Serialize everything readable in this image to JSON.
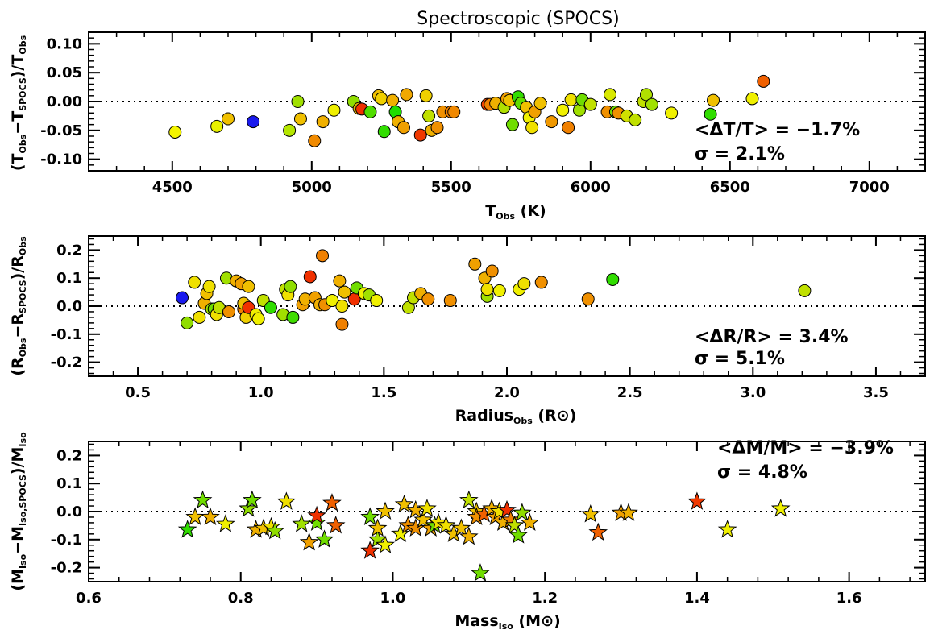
{
  "chart_data": [
    {
      "type": "scatter",
      "title": "Spectroscopic (SPOCS)",
      "xlabel": "T_Obs (K)",
      "ylabel": "(T_Obs−T_SPOCS)/T_Obs",
      "xlim": [
        4200,
        7200
      ],
      "ylim": [
        -0.12,
        0.12
      ],
      "xticks": [
        4500,
        5000,
        5500,
        6000,
        6500,
        7000
      ],
      "yticks": [
        0.1,
        0.05,
        0.0,
        -0.05,
        -0.1
      ],
      "ytick_labels": [
        "0.10",
        "0.05",
        "0.00",
        "-0.05",
        "-0.10"
      ],
      "marker": "circle",
      "annotations": [
        "<ΔT/T> = −1.7%",
        "σ = 2.1%"
      ],
      "points": [
        {
          "x": 4510,
          "y": -0.053,
          "color": "#f5f500"
        },
        {
          "x": 4660,
          "y": -0.043,
          "color": "#e8f000"
        },
        {
          "x": 4700,
          "y": -0.03,
          "color": "#f0c000"
        },
        {
          "x": 4790,
          "y": -0.035,
          "color": "#1a1aee"
        },
        {
          "x": 4920,
          "y": -0.05,
          "color": "#b5e600"
        },
        {
          "x": 4950,
          "y": 0.0,
          "color": "#a0e000"
        },
        {
          "x": 4960,
          "y": -0.03,
          "color": "#f0c000"
        },
        {
          "x": 5010,
          "y": -0.068,
          "color": "#f08a00"
        },
        {
          "x": 5040,
          "y": -0.035,
          "color": "#f0b000"
        },
        {
          "x": 5080,
          "y": -0.015,
          "color": "#f0f000"
        },
        {
          "x": 5150,
          "y": 0.0,
          "color": "#90dd00"
        },
        {
          "x": 5170,
          "y": -0.012,
          "color": "#e8b000"
        },
        {
          "x": 5180,
          "y": -0.013,
          "color": "#f03000"
        },
        {
          "x": 5210,
          "y": -0.018,
          "color": "#50dd00"
        },
        {
          "x": 5240,
          "y": 0.01,
          "color": "#f0c000"
        },
        {
          "x": 5250,
          "y": 0.005,
          "color": "#f0d000"
        },
        {
          "x": 5260,
          "y": -0.052,
          "color": "#30dd00"
        },
        {
          "x": 5290,
          "y": 0.002,
          "color": "#f0b000"
        },
        {
          "x": 5300,
          "y": -0.018,
          "color": "#20dd00"
        },
        {
          "x": 5310,
          "y": -0.035,
          "color": "#f0b000"
        },
        {
          "x": 5330,
          "y": -0.045,
          "color": "#f0a000"
        },
        {
          "x": 5340,
          "y": 0.012,
          "color": "#f0a800"
        },
        {
          "x": 5390,
          "y": -0.058,
          "color": "#f03800"
        },
        {
          "x": 5410,
          "y": 0.01,
          "color": "#f0d000"
        },
        {
          "x": 5420,
          "y": -0.025,
          "color": "#c0e000"
        },
        {
          "x": 5430,
          "y": -0.05,
          "color": "#f0b000"
        },
        {
          "x": 5450,
          "y": -0.045,
          "color": "#f09000"
        },
        {
          "x": 5470,
          "y": -0.018,
          "color": "#f09000"
        },
        {
          "x": 5500,
          "y": -0.018,
          "color": "#f08000"
        },
        {
          "x": 5510,
          "y": -0.018,
          "color": "#f08800"
        },
        {
          "x": 5630,
          "y": -0.005,
          "color": "#f04000"
        },
        {
          "x": 5640,
          "y": -0.005,
          "color": "#f08000"
        },
        {
          "x": 5660,
          "y": -0.003,
          "color": "#f0b000"
        },
        {
          "x": 5690,
          "y": -0.01,
          "color": "#b0e000"
        },
        {
          "x": 5700,
          "y": 0.005,
          "color": "#f0a000"
        },
        {
          "x": 5710,
          "y": 0.002,
          "color": "#f0c000"
        },
        {
          "x": 5720,
          "y": -0.04,
          "color": "#70dd00"
        },
        {
          "x": 5740,
          "y": 0.008,
          "color": "#30dd00"
        },
        {
          "x": 5750,
          "y": -0.003,
          "color": "#60dd00"
        },
        {
          "x": 5770,
          "y": -0.01,
          "color": "#f0c000"
        },
        {
          "x": 5780,
          "y": -0.028,
          "color": "#f0f000"
        },
        {
          "x": 5790,
          "y": -0.045,
          "color": "#f0e000"
        },
        {
          "x": 5800,
          "y": -0.018,
          "color": "#f0a000"
        },
        {
          "x": 5820,
          "y": -0.003,
          "color": "#f0c000"
        },
        {
          "x": 5860,
          "y": -0.035,
          "color": "#f09800"
        },
        {
          "x": 5900,
          "y": -0.015,
          "color": "#f0f000"
        },
        {
          "x": 5920,
          "y": -0.045,
          "color": "#f08000"
        },
        {
          "x": 5930,
          "y": 0.003,
          "color": "#f0e000"
        },
        {
          "x": 5960,
          "y": -0.015,
          "color": "#a0e000"
        },
        {
          "x": 5970,
          "y": 0.003,
          "color": "#70dd00"
        },
        {
          "x": 6000,
          "y": -0.005,
          "color": "#c0e000"
        },
        {
          "x": 6060,
          "y": -0.018,
          "color": "#f09000"
        },
        {
          "x": 6070,
          "y": 0.012,
          "color": "#d8e800"
        },
        {
          "x": 6090,
          "y": -0.018,
          "color": "#70dd00"
        },
        {
          "x": 6100,
          "y": -0.02,
          "color": "#f09000"
        },
        {
          "x": 6130,
          "y": -0.025,
          "color": "#d0e000"
        },
        {
          "x": 6160,
          "y": -0.032,
          "color": "#c0e000"
        },
        {
          "x": 6190,
          "y": 0.0,
          "color": "#c0e000"
        },
        {
          "x": 6200,
          "y": 0.012,
          "color": "#b0e000"
        },
        {
          "x": 6220,
          "y": -0.005,
          "color": "#a0e000"
        },
        {
          "x": 6290,
          "y": -0.02,
          "color": "#f0f000"
        },
        {
          "x": 6430,
          "y": -0.022,
          "color": "#30dd00"
        },
        {
          "x": 6440,
          "y": 0.002,
          "color": "#f0c000"
        },
        {
          "x": 6580,
          "y": 0.005,
          "color": "#f0f000"
        },
        {
          "x": 6620,
          "y": 0.035,
          "color": "#f06000"
        }
      ]
    },
    {
      "type": "scatter",
      "title": "",
      "xlabel": "Radius_Obs (R⊙)",
      "ylabel": "(R_Obs−R_SPOCS)/R_Obs",
      "xlim": [
        0.3,
        3.7
      ],
      "ylim": [
        -0.25,
        0.25
      ],
      "xticks": [
        0.5,
        1.0,
        1.5,
        2.0,
        2.5,
        3.0,
        3.5
      ],
      "yticks": [
        0.2,
        0.1,
        0.0,
        -0.1,
        -0.2
      ],
      "ytick_labels": [
        "0.2",
        "0.1",
        "0.0",
        "-0.1",
        "-0.2"
      ],
      "marker": "circle",
      "annotations": [
        "<ΔR/R> = 3.4%",
        "σ = 5.1%"
      ],
      "points": [
        {
          "x": 0.68,
          "y": 0.03,
          "color": "#1a1aee"
        },
        {
          "x": 0.7,
          "y": -0.06,
          "color": "#90dd00"
        },
        {
          "x": 0.73,
          "y": 0.085,
          "color": "#f0e000"
        },
        {
          "x": 0.75,
          "y": -0.04,
          "color": "#f0e000"
        },
        {
          "x": 0.77,
          "y": 0.01,
          "color": "#f0b000"
        },
        {
          "x": 0.78,
          "y": 0.045,
          "color": "#f0c000"
        },
        {
          "x": 0.79,
          "y": 0.07,
          "color": "#f0e000"
        },
        {
          "x": 0.8,
          "y": -0.01,
          "color": "#a0e000"
        },
        {
          "x": 0.81,
          "y": -0.01,
          "color": "#70dd00"
        },
        {
          "x": 0.82,
          "y": -0.03,
          "color": "#f0e000"
        },
        {
          "x": 0.83,
          "y": -0.005,
          "color": "#c0e000"
        },
        {
          "x": 0.86,
          "y": 0.1,
          "color": "#a0e000"
        },
        {
          "x": 0.87,
          "y": -0.02,
          "color": "#f09000"
        },
        {
          "x": 0.9,
          "y": 0.09,
          "color": "#f0b000"
        },
        {
          "x": 0.92,
          "y": 0.08,
          "color": "#f0a000"
        },
        {
          "x": 0.93,
          "y": -0.01,
          "color": "#f08000"
        },
        {
          "x": 0.93,
          "y": 0.01,
          "color": "#f0c000"
        },
        {
          "x": 0.94,
          "y": -0.04,
          "color": "#f0d000"
        },
        {
          "x": 0.95,
          "y": 0.07,
          "color": "#f0c000"
        },
        {
          "x": 0.95,
          "y": -0.005,
          "color": "#f03000"
        },
        {
          "x": 0.98,
          "y": -0.03,
          "color": "#f0f000"
        },
        {
          "x": 0.99,
          "y": -0.045,
          "color": "#f0f000"
        },
        {
          "x": 1.01,
          "y": 0.02,
          "color": "#c0e000"
        },
        {
          "x": 1.04,
          "y": -0.005,
          "color": "#30dd00"
        },
        {
          "x": 1.09,
          "y": -0.03,
          "color": "#a0e000"
        },
        {
          "x": 1.1,
          "y": 0.06,
          "color": "#c0e000"
        },
        {
          "x": 1.11,
          "y": 0.04,
          "color": "#f0e000"
        },
        {
          "x": 1.12,
          "y": 0.07,
          "color": "#90dd00"
        },
        {
          "x": 1.13,
          "y": -0.04,
          "color": "#40dd00"
        },
        {
          "x": 1.17,
          "y": 0.005,
          "color": "#f0a000"
        },
        {
          "x": 1.18,
          "y": 0.025,
          "color": "#f0b000"
        },
        {
          "x": 1.2,
          "y": 0.105,
          "color": "#f03000"
        },
        {
          "x": 1.22,
          "y": 0.03,
          "color": "#f0a000"
        },
        {
          "x": 1.24,
          "y": 0.005,
          "color": "#f0b000"
        },
        {
          "x": 1.25,
          "y": 0.18,
          "color": "#f08000"
        },
        {
          "x": 1.26,
          "y": 0.005,
          "color": "#f09000"
        },
        {
          "x": 1.29,
          "y": 0.02,
          "color": "#f0f000"
        },
        {
          "x": 1.32,
          "y": 0.09,
          "color": "#f0b000"
        },
        {
          "x": 1.33,
          "y": 0.0,
          "color": "#f0e000"
        },
        {
          "x": 1.33,
          "y": -0.065,
          "color": "#f08000"
        },
        {
          "x": 1.34,
          "y": 0.05,
          "color": "#f0c000"
        },
        {
          "x": 1.38,
          "y": 0.025,
          "color": "#f03000"
        },
        {
          "x": 1.39,
          "y": 0.065,
          "color": "#70dd00"
        },
        {
          "x": 1.42,
          "y": 0.045,
          "color": "#f0f000"
        },
        {
          "x": 1.44,
          "y": 0.04,
          "color": "#a0e000"
        },
        {
          "x": 1.47,
          "y": 0.02,
          "color": "#f0f000"
        },
        {
          "x": 1.6,
          "y": -0.005,
          "color": "#c0e000"
        },
        {
          "x": 1.62,
          "y": 0.03,
          "color": "#c0e000"
        },
        {
          "x": 1.65,
          "y": 0.045,
          "color": "#f0b000"
        },
        {
          "x": 1.68,
          "y": 0.025,
          "color": "#f09000"
        },
        {
          "x": 1.77,
          "y": 0.02,
          "color": "#f09000"
        },
        {
          "x": 1.87,
          "y": 0.15,
          "color": "#f0a000"
        },
        {
          "x": 1.91,
          "y": 0.1,
          "color": "#f0b000"
        },
        {
          "x": 1.92,
          "y": 0.035,
          "color": "#a0e000"
        },
        {
          "x": 1.92,
          "y": 0.06,
          "color": "#f0e000"
        },
        {
          "x": 1.94,
          "y": 0.125,
          "color": "#f09000"
        },
        {
          "x": 1.97,
          "y": 0.055,
          "color": "#f0f000"
        },
        {
          "x": 2.05,
          "y": 0.06,
          "color": "#f0f000"
        },
        {
          "x": 2.07,
          "y": 0.08,
          "color": "#f0e000"
        },
        {
          "x": 2.14,
          "y": 0.085,
          "color": "#f09000"
        },
        {
          "x": 2.33,
          "y": 0.025,
          "color": "#f09000"
        },
        {
          "x": 2.43,
          "y": 0.095,
          "color": "#30dd00"
        },
        {
          "x": 3.21,
          "y": 0.055,
          "color": "#c0e000"
        }
      ]
    },
    {
      "type": "scatter",
      "title": "",
      "xlabel": "Mass_Iso (M⊙)",
      "ylabel": "(M_Iso−M_Iso,SPOCS)/M_Iso",
      "xlim": [
        0.6,
        1.7
      ],
      "ylim": [
        -0.25,
        0.25
      ],
      "xticks": [
        0.6,
        0.8,
        1.0,
        1.2,
        1.4,
        1.6
      ],
      "yticks": [
        0.2,
        0.1,
        0.0,
        -0.1,
        -0.2
      ],
      "ytick_labels": [
        "0.2",
        "0.1",
        "0.0",
        "-0.1",
        "-0.2"
      ],
      "marker": "star",
      "annotations": [
        "<ΔM/M> = −3.9%",
        "σ = 4.8%"
      ],
      "points": [
        {
          "x": 0.73,
          "y": -0.065,
          "color": "#30dd00"
        },
        {
          "x": 0.74,
          "y": -0.02,
          "color": "#f0c000"
        },
        {
          "x": 0.75,
          "y": 0.04,
          "color": "#70dd00"
        },
        {
          "x": 0.76,
          "y": -0.02,
          "color": "#f0b000"
        },
        {
          "x": 0.78,
          "y": -0.045,
          "color": "#f0f000"
        },
        {
          "x": 0.81,
          "y": 0.01,
          "color": "#90dd00"
        },
        {
          "x": 0.815,
          "y": 0.04,
          "color": "#70dd00"
        },
        {
          "x": 0.82,
          "y": -0.065,
          "color": "#f0b000"
        },
        {
          "x": 0.83,
          "y": -0.06,
          "color": "#f0c000"
        },
        {
          "x": 0.84,
          "y": -0.055,
          "color": "#f0e000"
        },
        {
          "x": 0.845,
          "y": -0.07,
          "color": "#90dd00"
        },
        {
          "x": 0.86,
          "y": 0.035,
          "color": "#f0e000"
        },
        {
          "x": 0.88,
          "y": -0.045,
          "color": "#a0e000"
        },
        {
          "x": 0.89,
          "y": -0.11,
          "color": "#f0a000"
        },
        {
          "x": 0.9,
          "y": -0.04,
          "color": "#70dd00"
        },
        {
          "x": 0.9,
          "y": -0.015,
          "color": "#f03000"
        },
        {
          "x": 0.91,
          "y": -0.1,
          "color": "#70dd00"
        },
        {
          "x": 0.92,
          "y": 0.03,
          "color": "#f06000"
        },
        {
          "x": 0.925,
          "y": -0.05,
          "color": "#f06000"
        },
        {
          "x": 0.97,
          "y": -0.02,
          "color": "#70dd00"
        },
        {
          "x": 0.97,
          "y": -0.14,
          "color": "#f03000"
        },
        {
          "x": 0.98,
          "y": -0.1,
          "color": "#a0e000"
        },
        {
          "x": 0.98,
          "y": -0.06,
          "color": "#f0c000"
        },
        {
          "x": 0.99,
          "y": 0.0,
          "color": "#f0c000"
        },
        {
          "x": 0.99,
          "y": -0.12,
          "color": "#f0f000"
        },
        {
          "x": 1.01,
          "y": -0.08,
          "color": "#f0f000"
        },
        {
          "x": 1.015,
          "y": 0.025,
          "color": "#f0c000"
        },
        {
          "x": 1.02,
          "y": -0.05,
          "color": "#f09000"
        },
        {
          "x": 1.03,
          "y": 0.005,
          "color": "#f0b000"
        },
        {
          "x": 1.03,
          "y": -0.06,
          "color": "#f09000"
        },
        {
          "x": 1.04,
          "y": -0.03,
          "color": "#f0c000"
        },
        {
          "x": 1.045,
          "y": 0.01,
          "color": "#f0e000"
        },
        {
          "x": 1.05,
          "y": -0.06,
          "color": "#f0a000"
        },
        {
          "x": 1.055,
          "y": -0.05,
          "color": "#70dd00"
        },
        {
          "x": 1.06,
          "y": -0.04,
          "color": "#f0e000"
        },
        {
          "x": 1.07,
          "y": -0.05,
          "color": "#f0e000"
        },
        {
          "x": 1.08,
          "y": -0.08,
          "color": "#f0c000"
        },
        {
          "x": 1.09,
          "y": -0.06,
          "color": "#f0c000"
        },
        {
          "x": 1.1,
          "y": 0.04,
          "color": "#c0e000"
        },
        {
          "x": 1.1,
          "y": -0.09,
          "color": "#f0b000"
        },
        {
          "x": 1.11,
          "y": 0.0,
          "color": "#f0c000"
        },
        {
          "x": 1.11,
          "y": -0.02,
          "color": "#f09000"
        },
        {
          "x": 1.115,
          "y": -0.22,
          "color": "#70dd00"
        },
        {
          "x": 1.12,
          "y": -0.01,
          "color": "#f06000"
        },
        {
          "x": 1.13,
          "y": 0.01,
          "color": "#f0b000"
        },
        {
          "x": 1.135,
          "y": -0.02,
          "color": "#f0a000"
        },
        {
          "x": 1.14,
          "y": 0.0,
          "color": "#f0e000"
        },
        {
          "x": 1.145,
          "y": -0.04,
          "color": "#f0b000"
        },
        {
          "x": 1.15,
          "y": 0.005,
          "color": "#f03000"
        },
        {
          "x": 1.155,
          "y": -0.03,
          "color": "#f08000"
        },
        {
          "x": 1.16,
          "y": -0.05,
          "color": "#c0e000"
        },
        {
          "x": 1.165,
          "y": -0.085,
          "color": "#70dd00"
        },
        {
          "x": 1.17,
          "y": -0.005,
          "color": "#90dd00"
        },
        {
          "x": 1.18,
          "y": -0.04,
          "color": "#f0b000"
        },
        {
          "x": 1.26,
          "y": -0.01,
          "color": "#f0c000"
        },
        {
          "x": 1.27,
          "y": -0.075,
          "color": "#f06000"
        },
        {
          "x": 1.3,
          "y": -0.005,
          "color": "#f0a000"
        },
        {
          "x": 1.31,
          "y": -0.005,
          "color": "#f0b000"
        },
        {
          "x": 1.4,
          "y": 0.035,
          "color": "#f03800"
        },
        {
          "x": 1.44,
          "y": -0.065,
          "color": "#f0f000"
        },
        {
          "x": 1.51,
          "y": 0.01,
          "color": "#f0f000"
        }
      ]
    }
  ]
}
